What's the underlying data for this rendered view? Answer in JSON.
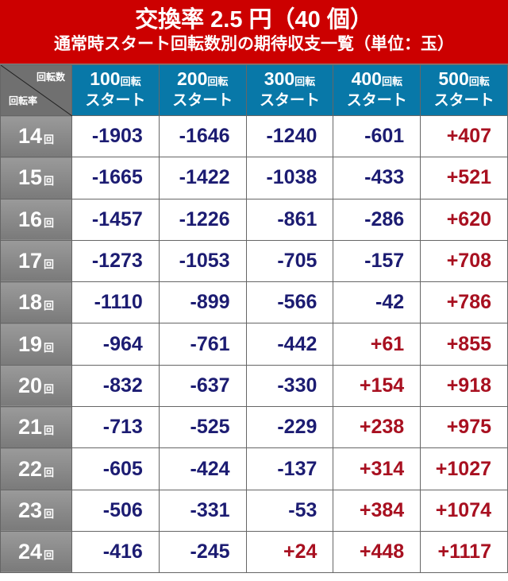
{
  "title": {
    "line1": "交換率 2.5 円（40 個）",
    "line2": "通常時スタート回転数別の期待収支一覧（単位：玉）"
  },
  "corner": {
    "top": "回転数",
    "bottom": "回転率"
  },
  "columns": [
    {
      "num": "100",
      "unit": "回転",
      "sub": "スタート"
    },
    {
      "num": "200",
      "unit": "回転",
      "sub": "スタート"
    },
    {
      "num": "300",
      "unit": "回転",
      "sub": "スタート"
    },
    {
      "num": "400",
      "unit": "回転",
      "sub": "スタート"
    },
    {
      "num": "500",
      "unit": "回転",
      "sub": "スタート"
    }
  ],
  "row_unit": "回",
  "rows": [
    {
      "rate": "14",
      "values": [
        "-1903",
        "-1646",
        "-1240",
        "-601",
        "+407"
      ]
    },
    {
      "rate": "15",
      "values": [
        "-1665",
        "-1422",
        "-1038",
        "-433",
        "+521"
      ]
    },
    {
      "rate": "16",
      "values": [
        "-1457",
        "-1226",
        "-861",
        "-286",
        "+620"
      ]
    },
    {
      "rate": "17",
      "values": [
        "-1273",
        "-1053",
        "-705",
        "-157",
        "+708"
      ]
    },
    {
      "rate": "18",
      "values": [
        "-1110",
        "-899",
        "-566",
        "-42",
        "+786"
      ]
    },
    {
      "rate": "19",
      "values": [
        "-964",
        "-761",
        "-442",
        "+61",
        "+855"
      ]
    },
    {
      "rate": "20",
      "values": [
        "-832",
        "-637",
        "-330",
        "+154",
        "+918"
      ]
    },
    {
      "rate": "21",
      "values": [
        "-713",
        "-525",
        "-229",
        "+238",
        "+975"
      ]
    },
    {
      "rate": "22",
      "values": [
        "-605",
        "-424",
        "-137",
        "+314",
        "+1027"
      ]
    },
    {
      "rate": "23",
      "values": [
        "-506",
        "-331",
        "-53",
        "+384",
        "+1074"
      ]
    },
    {
      "rate": "24",
      "values": [
        "-416",
        "-245",
        "+24",
        "+448",
        "+1117"
      ]
    }
  ],
  "colors": {
    "title_bg": "#cc0000",
    "header_bg": "#0878a8",
    "negative": "#1c1c72",
    "positive": "#a81020"
  }
}
